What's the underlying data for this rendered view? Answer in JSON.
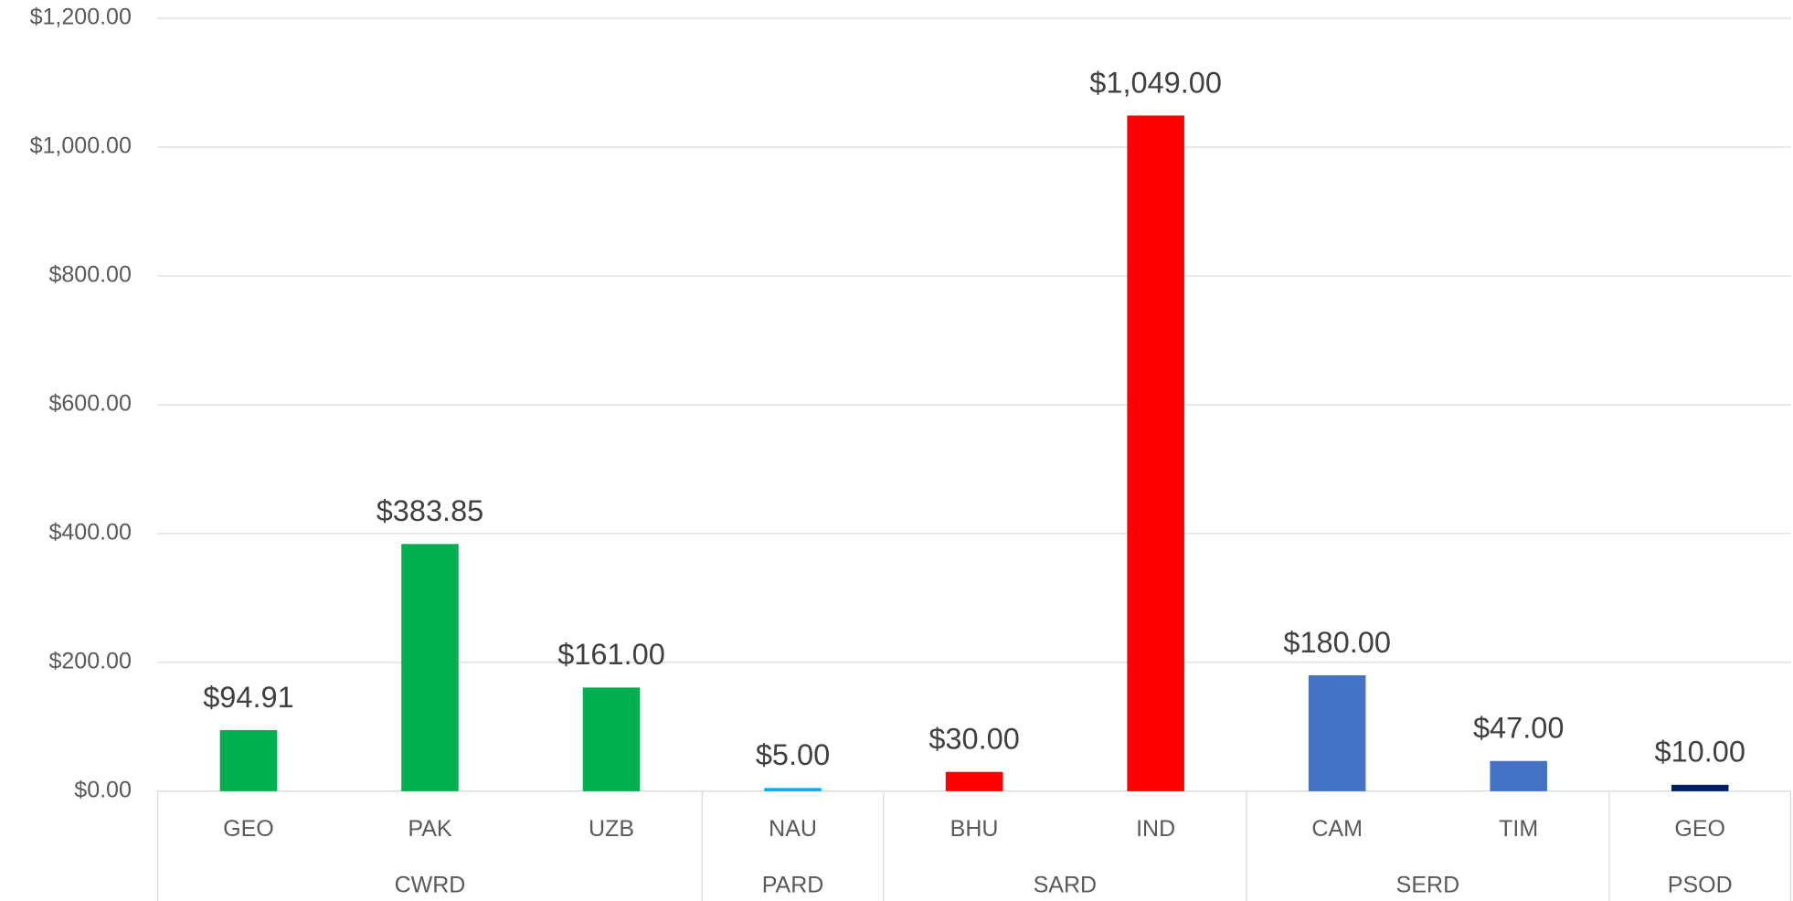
{
  "chart_data": {
    "type": "bar",
    "groups": [
      {
        "name": "CWRD",
        "color": "#00b050",
        "categories": [
          "GEO",
          "PAK",
          "UZB"
        ],
        "values": [
          94.91,
          383.85,
          161
        ],
        "value_labels": [
          "$94.91",
          "$383.85",
          "$161.00"
        ]
      },
      {
        "name": "PARD",
        "color": "#00b0f0",
        "categories": [
          "NAU"
        ],
        "values": [
          5
        ],
        "value_labels": [
          "$5.00"
        ]
      },
      {
        "name": "SARD",
        "color": "#ff0000",
        "categories": [
          "BHU",
          "IND"
        ],
        "values": [
          30,
          1049
        ],
        "value_labels": [
          "$30.00",
          "$1,049.00"
        ]
      },
      {
        "name": "SERD",
        "color": "#4472c4",
        "categories": [
          "CAM",
          "TIM"
        ],
        "values": [
          180,
          47
        ],
        "value_labels": [
          "$180.00",
          "$47.00"
        ]
      },
      {
        "name": "PSOD",
        "color": "#002060",
        "categories": [
          "GEO"
        ],
        "values": [
          10
        ],
        "value_labels": [
          "$10.00"
        ]
      }
    ],
    "ylim": [
      0,
      1200
    ],
    "yticks": [
      {
        "value": 0,
        "label": "$0.00"
      },
      {
        "value": 200,
        "label": "$200.00"
      },
      {
        "value": 400,
        "label": "$400.00"
      },
      {
        "value": 600,
        "label": "$600.00"
      },
      {
        "value": 800,
        "label": "$800.00"
      },
      {
        "value": 1000,
        "label": "$1,000.00"
      },
      {
        "value": 1200,
        "label": "$1,200.00"
      }
    ],
    "grid": true
  }
}
